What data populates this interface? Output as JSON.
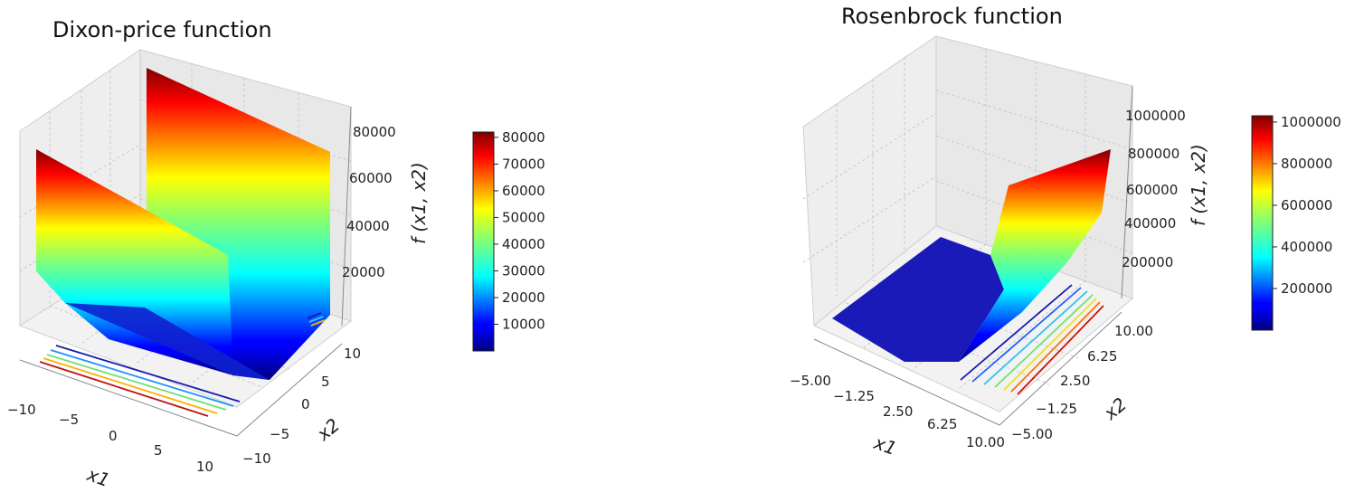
{
  "charts": [
    {
      "title": "Dixon-price function",
      "x_ticks": [
        "−10",
        "−5",
        "0",
        "5",
        "10"
      ],
      "y_ticks": [
        "−10",
        "−5",
        "0",
        "5",
        "10"
      ],
      "z_ticks": [
        "20000",
        "40000",
        "60000",
        "80000"
      ],
      "colorbar_ticks": [
        "10000",
        "20000",
        "30000",
        "40000",
        "50000",
        "60000",
        "70000",
        "80000"
      ],
      "xlabel": "x1",
      "ylabel": "x2",
      "zlabel": "f (x1, x2)"
    },
    {
      "title": "Rosenbrock function",
      "x_ticks": [
        "−5.00",
        "−1.25",
        "2.50",
        "6.25",
        "10.00"
      ],
      "y_ticks": [
        "−5.00",
        "−1.25",
        "2.50",
        "6.25",
        "10.00"
      ],
      "z_ticks": [
        "200000",
        "400000",
        "600000",
        "800000",
        "1000000"
      ],
      "colorbar_ticks": [
        "200000",
        "400000",
        "600000",
        "800000",
        "1000000"
      ],
      "xlabel": "x1",
      "ylabel": "x2",
      "zlabel": "f (x1, x2)"
    }
  ],
  "chart_data": [
    {
      "type": "surface3d",
      "function": "Dixon-price",
      "title": "Dixon-price function",
      "xlim": [
        -10,
        10
      ],
      "ylim": [
        -10,
        10
      ],
      "zlim": [
        0,
        90000
      ],
      "colorbar_range": [
        0,
        82000
      ],
      "colormap": "jet",
      "contour_offset_projection": true
    },
    {
      "type": "surface3d",
      "function": "Rosenbrock",
      "title": "Rosenbrock function",
      "xlim": [
        -5,
        10
      ],
      "ylim": [
        -5,
        10
      ],
      "zlim": [
        0,
        1100000
      ],
      "colorbar_range": [
        0,
        1030000
      ],
      "colormap": "jet",
      "contour_offset_projection": true
    }
  ]
}
